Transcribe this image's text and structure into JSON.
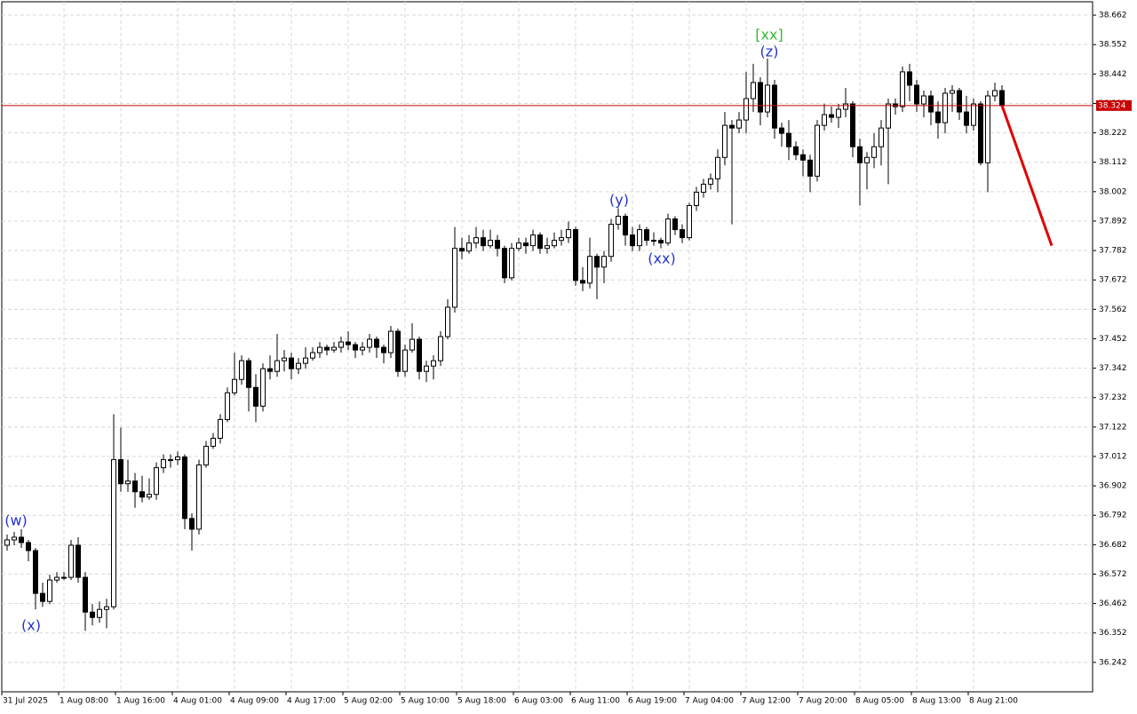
{
  "chart_data": {
    "type": "candlestick",
    "open": [
      36.68,
      36.7,
      36.71,
      36.69,
      36.66,
      36.5,
      36.47,
      36.55,
      36.56,
      36.56,
      36.68,
      36.56,
      36.43,
      36.41,
      36.44,
      36.45,
      37.0,
      36.91,
      36.92,
      36.88,
      36.86,
      36.87,
      36.97,
      37.0,
      37.0,
      37.01,
      36.78,
      36.74,
      36.98,
      37.05,
      37.08,
      37.15,
      37.25,
      37.3,
      37.37,
      37.27,
      37.2,
      37.34,
      37.33,
      37.37,
      37.38,
      37.34,
      37.36,
      37.38,
      37.4,
      37.42,
      37.41,
      37.42,
      37.44,
      37.43,
      37.41,
      37.42,
      37.45,
      37.42,
      37.4,
      37.48,
      37.33,
      37.41,
      37.45,
      37.33,
      37.35,
      37.37,
      37.46,
      37.57,
      37.79,
      37.78,
      37.81,
      37.83,
      37.8,
      37.82,
      37.79,
      37.68,
      37.79,
      37.81,
      37.8,
      37.84,
      37.79,
      37.8,
      37.82,
      37.83,
      37.86,
      37.67,
      37.66,
      37.76,
      37.72,
      37.76,
      37.88,
      37.91,
      37.84,
      37.8,
      37.86,
      37.82,
      37.82,
      37.81,
      37.9,
      37.86,
      37.83,
      37.95,
      38.0,
      38.03,
      38.05,
      38.13,
      38.25,
      38.24,
      38.27,
      38.35,
      38.41,
      38.3,
      38.4,
      38.24,
      38.22,
      38.17,
      38.14,
      38.12,
      38.06,
      38.25,
      38.29,
      38.28,
      38.31,
      38.33,
      38.17,
      38.11,
      38.13,
      38.17,
      38.24,
      38.33,
      38.32,
      38.45,
      38.4,
      38.33,
      38.36,
      38.3,
      38.26,
      38.37,
      38.38,
      38.3,
      38.25,
      38.33,
      38.11,
      38.36,
      38.38
    ],
    "high": [
      36.72,
      36.73,
      36.74,
      36.7,
      36.67,
      36.54,
      36.57,
      36.58,
      36.58,
      36.7,
      36.71,
      36.58,
      36.46,
      36.47,
      36.48,
      37.17,
      37.12,
      37.0,
      36.95,
      36.94,
      36.93,
      36.99,
      37.02,
      37.02,
      37.03,
      37.02,
      36.8,
      37.0,
      37.07,
      37.1,
      37.17,
      37.27,
      37.4,
      37.39,
      37.38,
      37.32,
      37.36,
      37.39,
      37.47,
      37.41,
      37.4,
      37.38,
      37.42,
      37.42,
      37.44,
      37.43,
      37.44,
      37.46,
      37.48,
      37.44,
      37.44,
      37.47,
      37.46,
      37.43,
      37.5,
      37.49,
      37.43,
      37.51,
      37.46,
      37.37,
      37.39,
      37.48,
      37.6,
      37.87,
      37.83,
      37.84,
      37.87,
      37.86,
      37.86,
      37.84,
      37.8,
      37.81,
      37.83,
      37.83,
      37.86,
      37.85,
      37.83,
      37.85,
      37.86,
      37.89,
      37.87,
      37.72,
      37.83,
      37.77,
      37.78,
      37.9,
      37.94,
      37.92,
      37.87,
      37.88,
      37.87,
      37.85,
      37.83,
      37.92,
      37.91,
      37.88,
      37.96,
      38.02,
      38.05,
      38.07,
      38.16,
      38.3,
      38.27,
      38.3,
      38.45,
      38.48,
      38.43,
      38.5,
      38.42,
      38.26,
      38.27,
      38.19,
      38.16,
      38.14,
      38.27,
      38.33,
      38.32,
      38.33,
      38.39,
      38.34,
      38.2,
      38.15,
      38.22,
      38.27,
      38.35,
      38.35,
      38.47,
      38.48,
      38.42,
      38.38,
      38.38,
      38.34,
      38.39,
      38.4,
      38.39,
      38.36,
      38.35,
      38.34,
      38.38,
      38.41,
      38.4
    ],
    "low": [
      36.66,
      36.68,
      36.67,
      36.62,
      36.44,
      36.45,
      36.46,
      36.54,
      36.55,
      36.55,
      36.54,
      36.36,
      36.38,
      36.39,
      36.37,
      36.44,
      36.88,
      36.88,
      36.82,
      36.84,
      36.85,
      36.85,
      36.95,
      36.97,
      36.98,
      36.74,
      36.66,
      36.72,
      36.97,
      37.04,
      37.06,
      37.14,
      37.24,
      37.28,
      37.18,
      37.14,
      37.18,
      37.3,
      37.31,
      37.33,
      37.3,
      37.32,
      37.34,
      37.37,
      37.38,
      37.39,
      37.4,
      37.4,
      37.41,
      37.38,
      37.39,
      37.4,
      37.38,
      37.36,
      37.38,
      37.31,
      37.31,
      37.4,
      37.3,
      37.29,
      37.3,
      37.35,
      37.45,
      37.55,
      37.75,
      37.77,
      37.79,
      37.78,
      37.79,
      37.76,
      37.66,
      37.67,
      37.78,
      37.77,
      37.78,
      37.77,
      37.77,
      37.79,
      37.8,
      37.81,
      37.65,
      37.63,
      37.64,
      37.6,
      37.66,
      37.74,
      37.86,
      37.8,
      37.78,
      37.78,
      37.8,
      37.8,
      37.79,
      37.8,
      37.84,
      37.81,
      37.82,
      37.93,
      37.98,
      38.01,
      38.0,
      38.1,
      37.88,
      38.22,
      38.22,
      38.3,
      38.25,
      38.28,
      38.2,
      38.17,
      38.12,
      38.12,
      38.06,
      38.0,
      38.04,
      38.23,
      38.26,
      38.24,
      38.28,
      38.13,
      37.95,
      38.01,
      38.09,
      38.1,
      38.03,
      38.29,
      38.3,
      38.34,
      38.3,
      38.28,
      38.25,
      38.2,
      38.22,
      38.3,
      38.27,
      38.22,
      38.23,
      38.1,
      38.0,
      38.34,
      38.31
    ],
    "close": [
      36.7,
      36.71,
      36.69,
      36.66,
      36.5,
      36.47,
      36.55,
      36.56,
      36.56,
      36.68,
      36.56,
      36.43,
      36.41,
      36.44,
      36.45,
      37.0,
      36.91,
      36.92,
      36.88,
      36.86,
      36.87,
      36.97,
      37.0,
      37.0,
      37.01,
      36.78,
      36.74,
      36.98,
      37.05,
      37.08,
      37.15,
      37.25,
      37.3,
      37.37,
      37.27,
      37.2,
      37.34,
      37.33,
      37.37,
      37.38,
      37.34,
      37.36,
      37.38,
      37.4,
      37.42,
      37.41,
      37.42,
      37.44,
      37.43,
      37.41,
      37.42,
      37.45,
      37.42,
      37.4,
      37.48,
      37.33,
      37.41,
      37.45,
      37.33,
      37.35,
      37.37,
      37.46,
      37.57,
      37.79,
      37.78,
      37.81,
      37.83,
      37.8,
      37.82,
      37.79,
      37.68,
      37.79,
      37.81,
      37.8,
      37.84,
      37.79,
      37.8,
      37.82,
      37.83,
      37.86,
      37.67,
      37.66,
      37.76,
      37.72,
      37.76,
      37.88,
      37.91,
      37.84,
      37.8,
      37.86,
      37.82,
      37.82,
      37.81,
      37.9,
      37.86,
      37.83,
      37.95,
      38.0,
      38.03,
      38.05,
      38.13,
      38.25,
      38.24,
      38.27,
      38.35,
      38.41,
      38.3,
      38.4,
      38.24,
      38.22,
      38.17,
      38.14,
      38.12,
      38.06,
      38.25,
      38.29,
      38.28,
      38.31,
      38.33,
      38.17,
      38.11,
      38.13,
      38.17,
      38.24,
      38.33,
      38.32,
      38.45,
      38.4,
      38.33,
      38.36,
      38.3,
      38.26,
      38.37,
      38.38,
      38.3,
      38.25,
      38.33,
      38.11,
      38.36,
      38.38,
      38.324
    ],
    "up_color": "#ffffff",
    "down_color": "#000000",
    "wick_color": "#000000",
    "ylim": [
      36.132,
      38.712
    ],
    "yticks": [
      38.662,
      38.552,
      38.442,
      38.332,
      38.222,
      38.112,
      38.002,
      37.892,
      37.782,
      37.672,
      37.562,
      37.452,
      37.342,
      37.232,
      37.122,
      37.012,
      36.902,
      36.792,
      36.682,
      36.572,
      36.462,
      36.352,
      36.242
    ],
    "xticks": [
      "31 Jul 2025",
      "1 Aug 08:00",
      "1 Aug 16:00",
      "4 Aug 01:00",
      "4 Aug 09:00",
      "4 Aug 17:00",
      "5 Aug 02:00",
      "5 Aug 10:00",
      "5 Aug 18:00",
      "6 Aug 03:00",
      "6 Aug 11:00",
      "6 Aug 19:00",
      "7 Aug 04:00",
      "7 Aug 12:00",
      "7 Aug 20:00",
      "8 Aug 05:00",
      "8 Aug 13:00",
      "8 Aug 21:00"
    ],
    "grid": true,
    "current_price": {
      "value": 38.324,
      "label": "38.324",
      "color": "#c80000"
    },
    "forecast": {
      "color": "#e00000",
      "x": [
        140,
        147
      ],
      "values": [
        38.324,
        37.8
      ]
    },
    "annotations": [
      {
        "text": "(w)",
        "color": "#2233cc"
      },
      {
        "text": "(x)",
        "color": "#2233cc"
      },
      {
        "text": "(y)",
        "color": "#2233cc"
      },
      {
        "text": "(xx)",
        "color": "#2233cc"
      },
      {
        "text": "(z)",
        "color": "#2233cc"
      },
      {
        "text": "[xx]",
        "color": "#33bb33"
      }
    ]
  }
}
